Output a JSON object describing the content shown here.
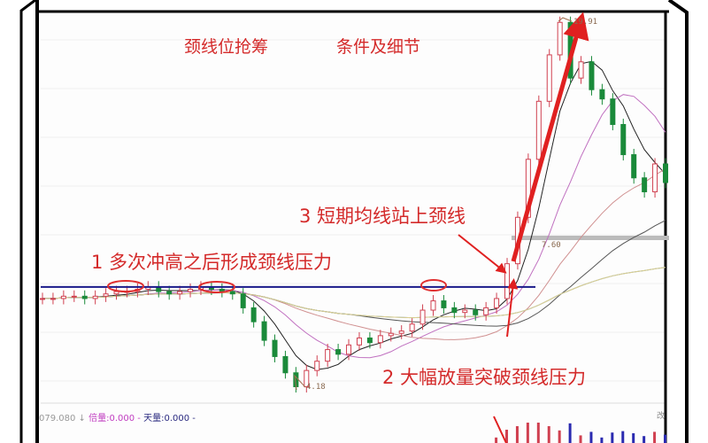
{
  "chart_data": {
    "type": "candlestick",
    "title_left": "颈线位抢筹",
    "title_right": "条件及细节",
    "annotations": [
      "1 多次冲高之后形成颈线压力",
      "2 大幅放量突破颈线压力",
      "3 短期均线站上颈线"
    ],
    "price_labels": {
      "low": "4.18",
      "high": "19.91",
      "level": "7.60"
    },
    "neckline_price": 8.5,
    "closes": [
      8.0,
      8.0,
      8.1,
      8.1,
      8.0,
      8.1,
      8.2,
      8.3,
      8.3,
      8.4,
      8.5,
      8.3,
      8.2,
      8.3,
      8.4,
      8.5,
      8.4,
      8.3,
      8.2,
      7.6,
      7.0,
      6.2,
      5.5,
      4.8,
      4.2,
      4.9,
      5.3,
      5.8,
      5.6,
      6.0,
      6.3,
      6.1,
      6.4,
      6.5,
      6.6,
      6.9,
      7.5,
      7.9,
      7.6,
      7.4,
      7.5,
      7.3,
      7.6,
      8.0,
      9.5,
      11.5,
      14.0,
      16.5,
      18.5,
      19.9,
      17.5,
      18.2,
      17.0,
      16.6,
      15.5,
      14.2,
      13.2,
      12.6,
      13.8,
      13.0
    ],
    "moving_averages": [
      5,
      10,
      20,
      30,
      60,
      120
    ],
    "ylim": [
      4.18,
      19.91
    ],
    "grid": true,
    "colors": {
      "up": "#d04050",
      "down": "#1a8a3a",
      "neckline": "#1a1a8a",
      "arrow": "#e02020",
      "annotation": "#d42a2a"
    }
  },
  "status_bar": {
    "prefix": "079.080",
    "arrow": "↓",
    "label1": "倍量",
    "value1": ":0.000 -",
    "label2": "天量",
    "value2": ":0.000 -"
  },
  "side_char": "改"
}
